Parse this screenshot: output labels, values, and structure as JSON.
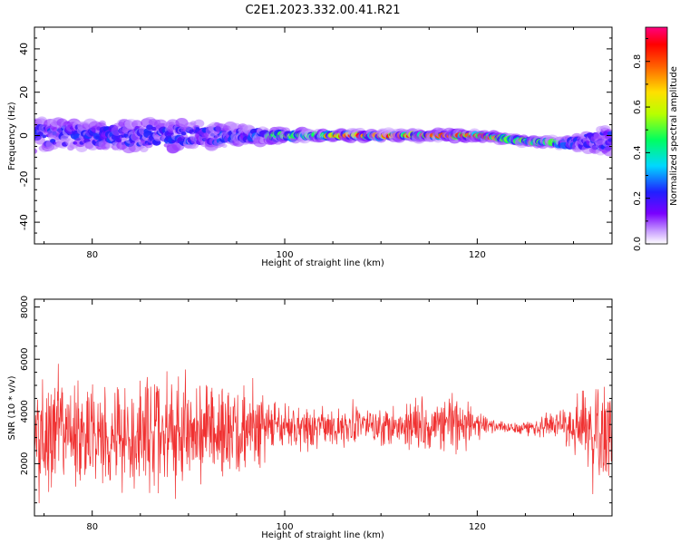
{
  "title": "C2E1.2023.332.00.41.R21",
  "chart_data": [
    {
      "type": "heatmap",
      "title": "",
      "xlabel": "Height of straight line (km)",
      "ylabel": "Frequency (Hz)",
      "xlim": [
        74,
        134
      ],
      "ylim": [
        -50,
        50
      ],
      "xticks": [
        80,
        100,
        120
      ],
      "yticks": [
        -40,
        -20,
        0,
        20,
        40
      ],
      "colorbar": {
        "label": "Normalized spectral amplitude",
        "range": [
          0,
          0.95
        ],
        "ticks": [
          0.0,
          0.2,
          0.4,
          0.6,
          0.8
        ],
        "tick_labels": [
          "0.0",
          "0.2",
          "0.4",
          "0.6",
          "0.8"
        ],
        "colormap": "rainbow (white-violet-blue-cyan-green-yellow-red-magenta)"
      },
      "ridge": {
        "description": "spectral ridge vs height (Hz)",
        "x": [
          74,
          80,
          86,
          92,
          96,
          100,
          104,
          108,
          112,
          116,
          120,
          122,
          124,
          126,
          128,
          130,
          132,
          134
        ],
        "center": [
          0,
          0,
          0,
          0,
          0,
          0,
          0,
          0,
          0,
          0,
          0,
          -1,
          -2,
          -3,
          -3,
          -4,
          -2,
          -3
        ],
        "spread": [
          10,
          8,
          9,
          8,
          5,
          3,
          2,
          2,
          2,
          2,
          2,
          2,
          2,
          2,
          2,
          4,
          7,
          9
        ],
        "peak_amplitude": [
          0.25,
          0.3,
          0.3,
          0.35,
          0.4,
          0.5,
          0.75,
          0.9,
          0.85,
          0.8,
          0.85,
          0.8,
          0.6,
          0.55,
          0.5,
          0.35,
          0.25,
          0.3
        ]
      },
      "grid": false
    },
    {
      "type": "line",
      "title": "",
      "xlabel": "Height of straight line (km)",
      "ylabel": "SNR (10 * v/v)",
      "xlim": [
        74,
        134
      ],
      "ylim": [
        0,
        8300
      ],
      "xticks": [
        80,
        100,
        120
      ],
      "yticks": [
        2000,
        4000,
        6000,
        8000
      ],
      "color": "#f03030",
      "series": [
        {
          "envelope_x": [
            74,
            76,
            78,
            80,
            82,
            84,
            86,
            88,
            90,
            92,
            94,
            96,
            98,
            100,
            104,
            108,
            112,
            116,
            118,
            120,
            122,
            124,
            126,
            128,
            130,
            132,
            134
          ],
          "envelope_center": [
            3200,
            3100,
            3200,
            3100,
            3300,
            3100,
            3200,
            3200,
            3100,
            3300,
            3200,
            3300,
            3400,
            3400,
            3400,
            3500,
            3500,
            3500,
            3500,
            3500,
            3400,
            3400,
            3400,
            3500,
            3300,
            3100,
            3000
          ],
          "envelope_halfwidth": [
            2900,
            2400,
            2300,
            2200,
            2700,
            2400,
            3000,
            2700,
            2200,
            2300,
            2000,
            2200,
            1200,
            900,
            900,
            800,
            1100,
            1100,
            1300,
            700,
            250,
            300,
            450,
            600,
            1100,
            2200,
            2600
          ]
        }
      ],
      "grid": false
    }
  ]
}
